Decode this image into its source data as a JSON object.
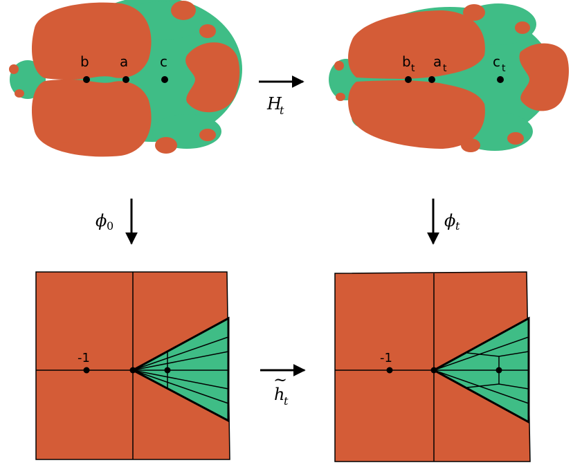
{
  "colors": {
    "orange": "#d45c37",
    "green": "#3fbd86",
    "ink": "#000000"
  },
  "top_left": {
    "points": [
      "b",
      "a",
      "c"
    ]
  },
  "top_right": {
    "points": [
      {
        "base": "b",
        "sub": "t"
      },
      {
        "base": "a",
        "sub": "t"
      },
      {
        "base": "c",
        "sub": "t"
      }
    ]
  },
  "arrows": {
    "top": {
      "sym": "H",
      "sub": "t"
    },
    "bottom": {
      "sym": "h",
      "accent": "~",
      "sub": "t"
    },
    "left": {
      "sym": "ϕ",
      "sub": "0"
    },
    "right": {
      "sym": "ϕ",
      "sub": "t"
    }
  },
  "bottom_left": {
    "marker": "-1"
  },
  "bottom_right": {
    "marker": "-1"
  }
}
